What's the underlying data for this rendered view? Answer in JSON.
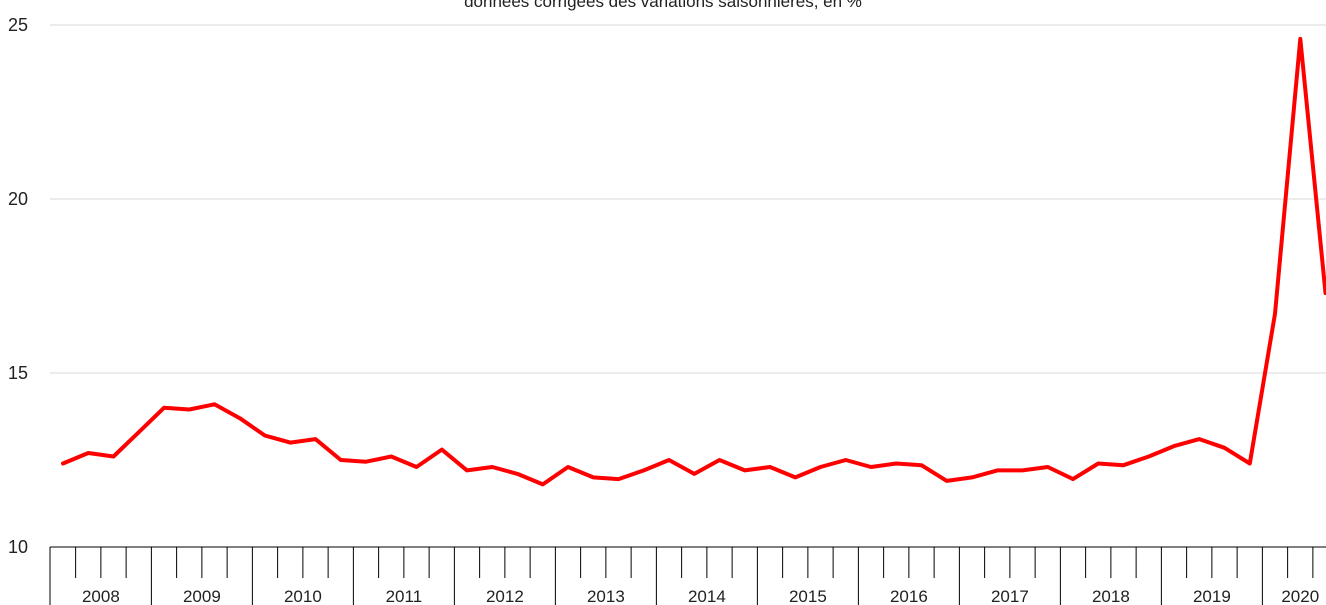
{
  "chart_data": {
    "type": "line",
    "subtitle": "données corrigées des variations saisonnières, en %",
    "ylim": [
      10,
      25
    ],
    "yticks": [
      10,
      15,
      20,
      25
    ],
    "grid": true,
    "year_labels": [
      "2008",
      "2009",
      "2010",
      "2011",
      "2012",
      "2013",
      "2014",
      "2015",
      "2016",
      "2017",
      "2018",
      "2019",
      "2020"
    ],
    "x": [
      "2008-Q1",
      "2008-Q2",
      "2008-Q3",
      "2008-Q4",
      "2009-Q1",
      "2009-Q2",
      "2009-Q3",
      "2009-Q4",
      "2010-Q1",
      "2010-Q2",
      "2010-Q3",
      "2010-Q4",
      "2011-Q1",
      "2011-Q2",
      "2011-Q3",
      "2011-Q4",
      "2012-Q1",
      "2012-Q2",
      "2012-Q3",
      "2012-Q4",
      "2013-Q1",
      "2013-Q2",
      "2013-Q3",
      "2013-Q4",
      "2014-Q1",
      "2014-Q2",
      "2014-Q3",
      "2014-Q4",
      "2015-Q1",
      "2015-Q2",
      "2015-Q3",
      "2015-Q4",
      "2016-Q1",
      "2016-Q2",
      "2016-Q3",
      "2016-Q4",
      "2017-Q1",
      "2017-Q2",
      "2017-Q3",
      "2017-Q4",
      "2018-Q1",
      "2018-Q2",
      "2018-Q3",
      "2018-Q4",
      "2019-Q1",
      "2019-Q2",
      "2019-Q3",
      "2019-Q4",
      "2020-Q1",
      "2020-Q2",
      "2020-Q3"
    ],
    "series": [
      {
        "color": "#ff0000",
        "values": [
          12.4,
          12.7,
          12.6,
          13.3,
          14.0,
          13.95,
          14.1,
          13.7,
          13.2,
          13.0,
          13.1,
          12.5,
          12.45,
          12.6,
          12.3,
          12.8,
          12.2,
          12.3,
          12.1,
          11.8,
          12.3,
          12.0,
          11.95,
          12.2,
          12.5,
          12.1,
          12.5,
          12.2,
          12.3,
          12.0,
          12.3,
          12.5,
          12.3,
          12.4,
          12.35,
          11.9,
          12.0,
          12.2,
          12.2,
          12.3,
          11.95,
          12.4,
          12.35,
          12.6,
          12.9,
          13.1,
          12.85,
          12.4,
          16.7,
          24.6,
          17.3
        ]
      }
    ]
  }
}
